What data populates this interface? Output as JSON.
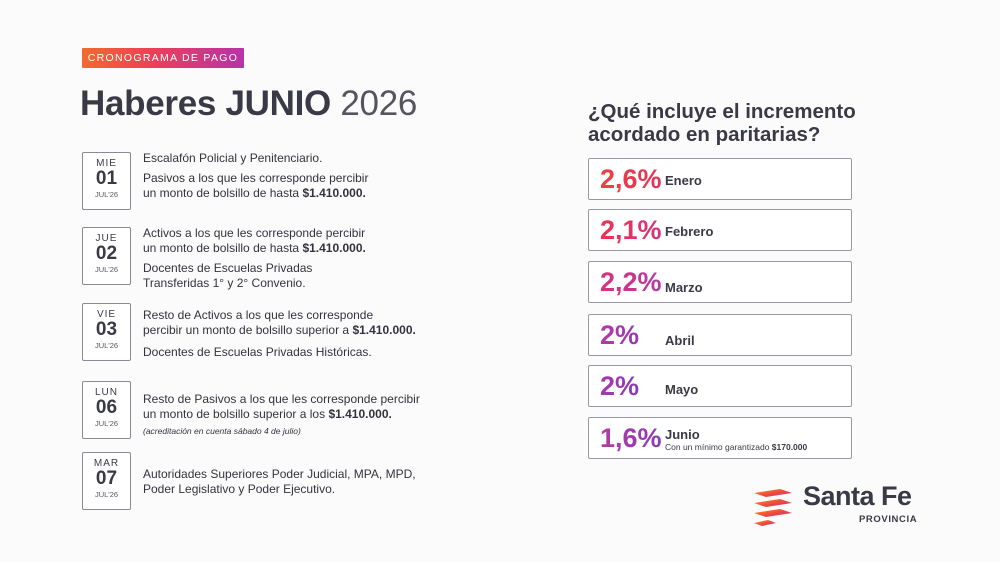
{
  "badge": "CRONOGRAMA DE PAGO",
  "title": {
    "bold": "Haberes JUNIO",
    "year": "2026"
  },
  "schedule": [
    {
      "weekday": "MIE",
      "day": "01",
      "month": "JUL'26",
      "lines": [
        "Escalafón Policial y Penitenciario.",
        "Pasivos a los que les corresponde percibir",
        "un monto de bolsillo de hasta "
      ],
      "amount": "$1.410.000."
    },
    {
      "weekday": "JUE",
      "day": "02",
      "month": "JUL'26",
      "lines": [
        "Activos a los que les corresponde percibir",
        "un monto de bolsillo de hasta ",
        "Docentes de Escuelas Privadas",
        "Transferidas 1° y 2° Convenio."
      ],
      "amount": "$1.410.000."
    },
    {
      "weekday": "VIE",
      "day": "03",
      "month": "JUL'26",
      "lines": [
        "Resto de Activos a los que les corresponde",
        "percibir un monto de bolsillo superior a ",
        "Docentes de Escuelas Privadas Históricas."
      ],
      "amount": "$1.410.000."
    },
    {
      "weekday": "LUN",
      "day": "06",
      "month": "JUL'26",
      "lines": [
        "Resto de Pasivos a los que les corresponde percibir",
        "un monto de bolsillo superior a los ",
        "(acreditación en cuenta sábado 4 de julio)"
      ],
      "amount": "$1.410.000."
    },
    {
      "weekday": "MAR",
      "day": "07",
      "month": "JUL'26",
      "lines": [
        "Autoridades Superiores Poder Judicial, MPA, MPD,",
        "Poder Legislativo y Poder Ejecutivo."
      ],
      "amount": ""
    }
  ],
  "increment": {
    "title_line1": "¿Qué incluye el  incremento",
    "title_line2": "acordado en paritarias?",
    "items": [
      {
        "pct": "2,6%",
        "month": "Enero",
        "color": "#e8344f"
      },
      {
        "pct": "2,1%",
        "month": "Febrero",
        "color": "#de3270"
      },
      {
        "pct": "2,2%",
        "month": "Marzo",
        "color": "#c93a98"
      },
      {
        "pct": "2%",
        "month": "Abril",
        "color": "#a13aab"
      },
      {
        "pct": "2%",
        "month": "Mayo",
        "color": "#9039b4"
      },
      {
        "pct": "1,6%",
        "month": "Junio",
        "color": "#8a3ab7",
        "note": "Con un mínimo garantizado ",
        "note_amount": "$170.000"
      }
    ]
  },
  "logo": {
    "name": "Santa Fe",
    "sub": "PROVINCIA",
    "icon": "santa-fe-logo-icon"
  },
  "colors": {
    "accent_orange": "#f26a2e",
    "accent_red": "#e8344f",
    "accent_purple": "#8a3ab7",
    "text": "#3a3a46"
  }
}
